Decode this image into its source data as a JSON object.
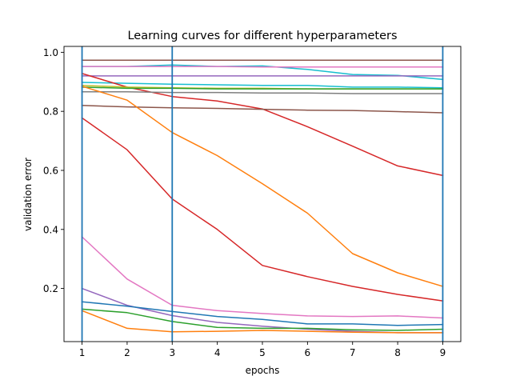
{
  "chart_data": {
    "type": "line",
    "title": "Learning curves for different hyperparameters",
    "xlabel": "epochs",
    "ylabel": "validation error",
    "xlim": [
      0.6,
      9.4
    ],
    "ylim": [
      0.02,
      1.02
    ],
    "x_ticks": [
      1,
      2,
      3,
      4,
      5,
      6,
      7,
      8,
      9
    ],
    "y_ticks": [
      0.2,
      0.4,
      0.6,
      0.8,
      1.0
    ],
    "y_tick_labels": [
      "0.2",
      "0.4",
      "0.6",
      "0.8",
      "1.0"
    ],
    "grid": false,
    "legend": false,
    "vertical_markers": {
      "x": [
        1,
        3,
        9
      ],
      "color": "#1f77b4"
    },
    "series": [
      {
        "color": "#8c564b",
        "x": [
          1,
          2,
          3,
          4,
          5,
          6,
          7,
          8,
          9
        ],
        "y": [
          0.973,
          0.973,
          0.973,
          0.973,
          0.973,
          0.973,
          0.973,
          0.973,
          0.973
        ]
      },
      {
        "color": "#17becf",
        "x": [
          1,
          2,
          3,
          4,
          5,
          6,
          7,
          8,
          9
        ],
        "y": [
          0.952,
          0.952,
          0.957,
          0.952,
          0.954,
          0.942,
          0.925,
          0.922,
          0.908
        ]
      },
      {
        "color": "#e377c2",
        "x": [
          1,
          2,
          3,
          4,
          5,
          6,
          7,
          8,
          9
        ],
        "y": [
          0.952,
          0.952,
          0.952,
          0.952,
          0.95,
          0.95,
          0.95,
          0.95,
          0.95
        ]
      },
      {
        "color": "#9467bd",
        "x": [
          1,
          2,
          3,
          4,
          5,
          6,
          7,
          8,
          9
        ],
        "y": [
          0.92,
          0.92,
          0.92,
          0.92,
          0.92,
          0.92,
          0.92,
          0.92,
          0.92
        ]
      },
      {
        "color": "#17becf",
        "x": [
          1,
          2,
          3,
          4,
          5,
          6,
          7,
          8,
          9
        ],
        "y": [
          0.898,
          0.895,
          0.892,
          0.89,
          0.888,
          0.888,
          0.882,
          0.882,
          0.88
        ]
      },
      {
        "color": "#d62728",
        "x": [
          1,
          2,
          3,
          4,
          5,
          6,
          7,
          8,
          9
        ],
        "y": [
          0.928,
          0.882,
          0.85,
          0.835,
          0.808,
          0.748,
          0.682,
          0.615,
          0.583
        ]
      },
      {
        "color": "#bcbd22",
        "x": [
          1,
          2,
          3,
          4,
          5,
          6,
          7,
          8,
          9
        ],
        "y": [
          0.888,
          0.882,
          0.88,
          0.878,
          0.878,
          0.876,
          0.876,
          0.876,
          0.876
        ]
      },
      {
        "color": "#2ca02c",
        "x": [
          1,
          2,
          3,
          4,
          5,
          6,
          7,
          8,
          9
        ],
        "y": [
          0.882,
          0.878,
          0.878,
          0.876,
          0.876,
          0.876,
          0.876,
          0.876,
          0.876
        ]
      },
      {
        "color": "#7f7f7f",
        "x": [
          1,
          2,
          3,
          4,
          5,
          6,
          7,
          8,
          9
        ],
        "y": [
          0.866,
          0.866,
          0.864,
          0.864,
          0.862,
          0.862,
          0.86,
          0.86,
          0.86
        ]
      },
      {
        "color": "#8c564b",
        "x": [
          1,
          2,
          3,
          4,
          5,
          6,
          7,
          8,
          9
        ],
        "y": [
          0.82,
          0.815,
          0.812,
          0.81,
          0.807,
          0.804,
          0.803,
          0.799,
          0.795
        ]
      },
      {
        "color": "#ff7f0e",
        "x": [
          1,
          2,
          3,
          4,
          5,
          6,
          7,
          8,
          9
        ],
        "y": [
          0.885,
          0.838,
          0.728,
          0.65,
          0.555,
          0.455,
          0.318,
          0.253,
          0.207
        ]
      },
      {
        "color": "#d62728",
        "x": [
          1,
          2,
          3,
          4,
          5,
          6,
          7,
          8,
          9
        ],
        "y": [
          0.778,
          0.67,
          0.503,
          0.4,
          0.278,
          0.24,
          0.207,
          0.18,
          0.158
        ]
      },
      {
        "color": "#e377c2",
        "x": [
          1,
          2,
          3,
          4,
          5,
          6,
          7,
          8,
          9
        ],
        "y": [
          0.375,
          0.232,
          0.143,
          0.125,
          0.115,
          0.107,
          0.105,
          0.107,
          0.1
        ]
      },
      {
        "color": "#9467bd",
        "x": [
          1,
          2,
          3,
          4,
          5,
          6,
          7,
          8,
          9
        ],
        "y": [
          0.2,
          0.143,
          0.108,
          0.085,
          0.072,
          0.062,
          0.055,
          0.05,
          0.05
        ]
      },
      {
        "color": "#1f77b4",
        "x": [
          1,
          2,
          3,
          4,
          5,
          6,
          7,
          8,
          9
        ],
        "y": [
          0.155,
          0.14,
          0.122,
          0.105,
          0.095,
          0.08,
          0.08,
          0.075,
          0.078
        ]
      },
      {
        "color": "#2ca02c",
        "x": [
          1,
          2,
          3,
          4,
          5,
          6,
          7,
          8,
          9
        ],
        "y": [
          0.13,
          0.118,
          0.088,
          0.068,
          0.065,
          0.065,
          0.06,
          0.058,
          0.062
        ]
      },
      {
        "color": "#ff7f0e",
        "x": [
          1,
          2,
          3,
          4,
          5,
          6,
          7,
          8,
          9
        ],
        "y": [
          0.125,
          0.065,
          0.053,
          0.055,
          0.058,
          0.055,
          0.052,
          0.05,
          0.05
        ]
      }
    ]
  }
}
